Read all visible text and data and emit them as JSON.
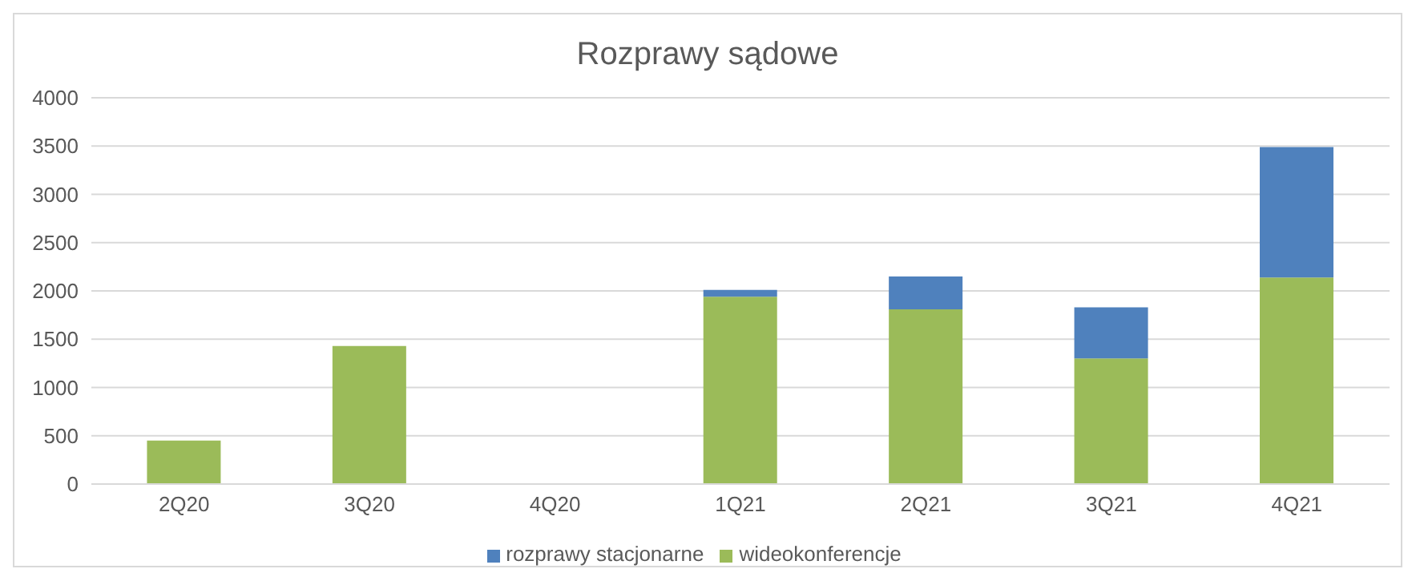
{
  "chart_data": {
    "type": "bar",
    "title": "Rozprawy sądowe",
    "categories": [
      "2Q20",
      "3Q20",
      "4Q20",
      "1Q21",
      "2Q21",
      "3Q21",
      "4Q21"
    ],
    "stacked": true,
    "series": [
      {
        "name": "wideokonferencje",
        "color": "#9bbb59",
        "values": [
          450,
          1430,
          null,
          1940,
          1810,
          1300,
          2140
        ]
      },
      {
        "name": "rozprawy stacjonarne",
        "color": "#4f81bd",
        "values": [
          null,
          null,
          null,
          70,
          340,
          530,
          1350
        ]
      }
    ],
    "ylim": [
      0,
      4000
    ],
    "yticks": [
      0,
      500,
      1000,
      1500,
      2000,
      2500,
      3000,
      3500,
      4000
    ],
    "grid": "y",
    "legend": "bottom"
  }
}
